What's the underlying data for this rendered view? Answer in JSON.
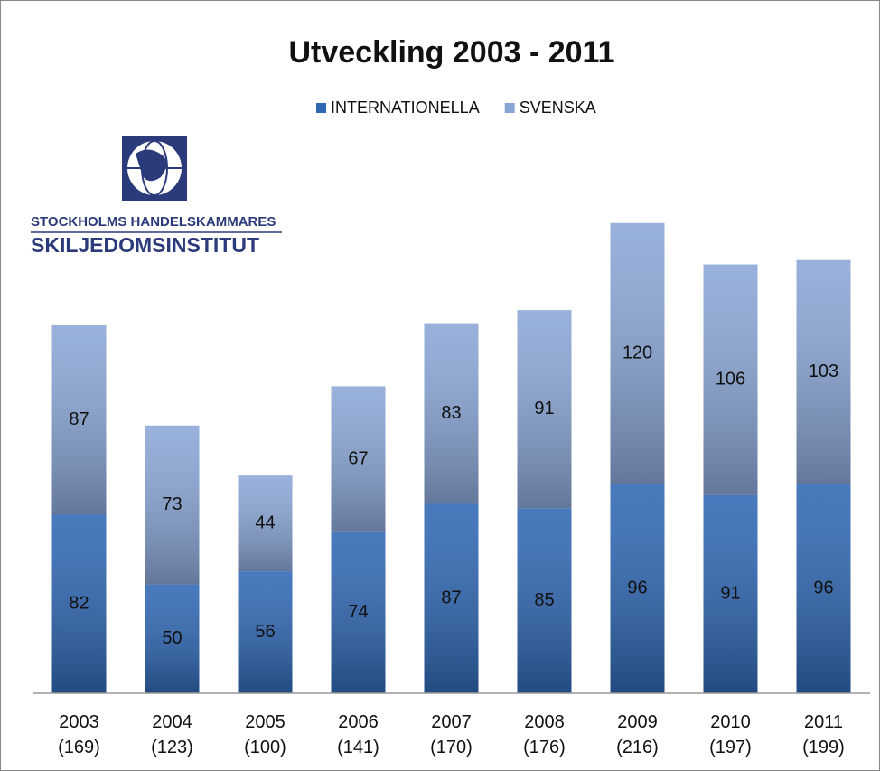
{
  "chart_data": {
    "type": "stacked_bar",
    "title": "Utveckling 2003 - 2011",
    "categories": [
      "2003\n(169)",
      "2004\n(123)",
      "2005\n(100)",
      "2006\n(141)",
      "2007\n(170)",
      "2008\n(176)",
      "2009\n(216)",
      "2010\n(197)",
      "2011\n(199)"
    ],
    "series": [
      {
        "name": "INTERNATIONELLA",
        "color": "#2f67b3",
        "values": [
          82,
          50,
          56,
          74,
          87,
          85,
          96,
          91,
          96
        ]
      },
      {
        "name": "SVENSKA",
        "color": "#8aa6d6",
        "values": [
          87,
          73,
          44,
          67,
          83,
          91,
          120,
          106,
          103
        ]
      }
    ],
    "ylim": [
      0,
      240
    ],
    "legend": "top",
    "logo": {
      "line1": "STOCKHOLMS HANDELSKAMMARES",
      "line2": "SKILJEDOMSINSTITUT"
    }
  }
}
